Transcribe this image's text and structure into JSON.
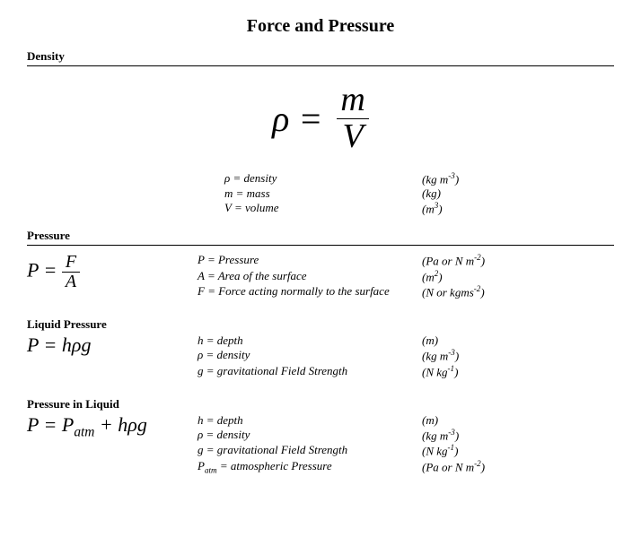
{
  "title": "Force and Pressure",
  "sections": {
    "density": {
      "heading": "Density",
      "formula": {
        "lhs_symbol": "ρ",
        "numerator": "m",
        "denominator": "V"
      },
      "defs": [
        {
          "symbol": "ρ",
          "name": "density",
          "unit_html": "(kg m<sup>-3</sup>)"
        },
        {
          "symbol": "m",
          "name": "mass",
          "unit_html": "(kg)"
        },
        {
          "symbol": "V",
          "name": "volume",
          "unit_html": "(m<sup>3</sup>)"
        }
      ]
    },
    "pressure": {
      "heading": "Pressure",
      "formula": {
        "lhs": "P",
        "numerator": "F",
        "denominator": "A"
      },
      "defs": [
        {
          "symbol": "P",
          "name": "Pressure",
          "unit_html": "(Pa or N m<sup>-2</sup>)"
        },
        {
          "symbol": "A",
          "name": "Area of the surface",
          "unit_html": "(m<sup>2</sup>)"
        },
        {
          "symbol": "F",
          "name": "Force acting normally to the surface",
          "unit_html": "(N or kgms<sup>-2</sup>)"
        }
      ]
    },
    "liquid_pressure": {
      "heading": "Liquid Pressure",
      "formula_html": "P = hρg",
      "defs": [
        {
          "symbol": "h",
          "name": "depth",
          "unit_html": "(m)"
        },
        {
          "symbol": "ρ",
          "name": "density",
          "unit_html": "(kg m<sup>-3</sup>)"
        },
        {
          "symbol": "g",
          "name": "gravitational Field Strength",
          "unit_html": "(N kg<sup>-1</sup>)"
        }
      ]
    },
    "pressure_in_liquid": {
      "heading": "Pressure in Liquid",
      "formula_html": "P = P<sub>atm</sub> + hρg",
      "defs": [
        {
          "symbol": "h",
          "name": "depth",
          "unit_html": "(m)"
        },
        {
          "symbol": "ρ",
          "name": "density",
          "unit_html": "(kg m<sup>-3</sup>)"
        },
        {
          "symbol": "g",
          "name": "gravitational Field Strength",
          "unit_html": "(N kg<sup>-1</sup>)"
        },
        {
          "symbol_html": "P<sub>atm</sub>",
          "name": "atmospheric Pressure",
          "unit_html": "(Pa or N m<sup>-2</sup>)"
        }
      ]
    }
  },
  "style": {
    "page_bg": "#ffffff",
    "text_color": "#000000",
    "title_fontsize": 20,
    "heading_fontsize": 13,
    "big_formula_fontsize": 40,
    "formula_fontsize": 22,
    "def_fontsize": 13,
    "font_family": "Times New Roman"
  }
}
